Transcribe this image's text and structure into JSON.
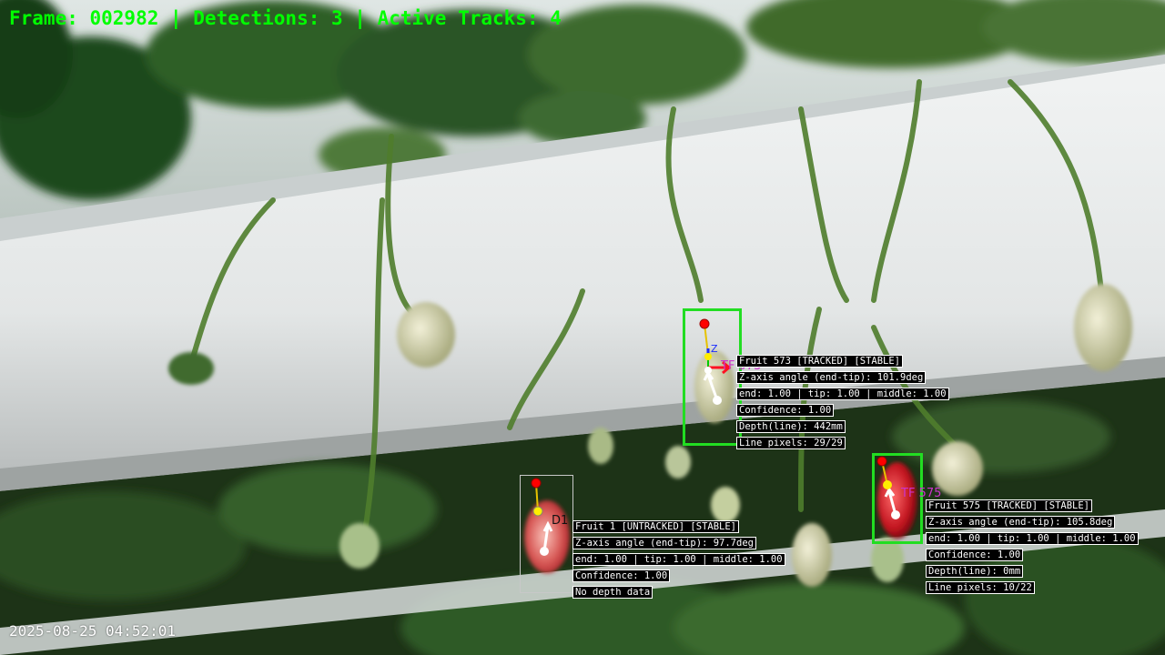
{
  "hud": {
    "status_line": "Frame: 002982 | Detections: 3 | Active Tracks: 4",
    "timestamp": "2025-08-25 04:52:01"
  },
  "detections": [
    {
      "id_label": "TF 573",
      "lines": [
        "Fruit 573 [TRACKED] [STABLE]",
        "Z-axis angle (end-tip): 101.9deg",
        "end: 1.00 | tip: 1.00 | middle: 1.00",
        "Confidence: 1.00",
        "Depth(line): 442mm",
        "Line pixels: 29/29"
      ]
    },
    {
      "id_label": "TF 575",
      "lines": [
        "Fruit 575 [TRACKED] [STABLE]",
        "Z-axis angle (end-tip): 105.8deg",
        "end: 1.00 | tip: 1.00 | middle: 1.00",
        "Confidence: 1.00",
        "Depth(line): 0mm",
        "Line pixels: 10/22"
      ]
    },
    {
      "id_label": "D1",
      "lines": [
        "Fruit 1 [UNTRACKED] [STABLE]",
        "Z-axis angle (end-tip): 97.7deg",
        "end: 1.00 | tip: 1.00 | middle: 1.00",
        "Confidence: 1.00",
        "No depth data"
      ]
    }
  ],
  "colors": {
    "hud_text": "#00ff00",
    "tracked_box": "#22dd22",
    "end_point": "#ff0000",
    "middle_point": "#ffee00",
    "tip_point": "#ffffff",
    "track_label": "#cc33cc"
  }
}
